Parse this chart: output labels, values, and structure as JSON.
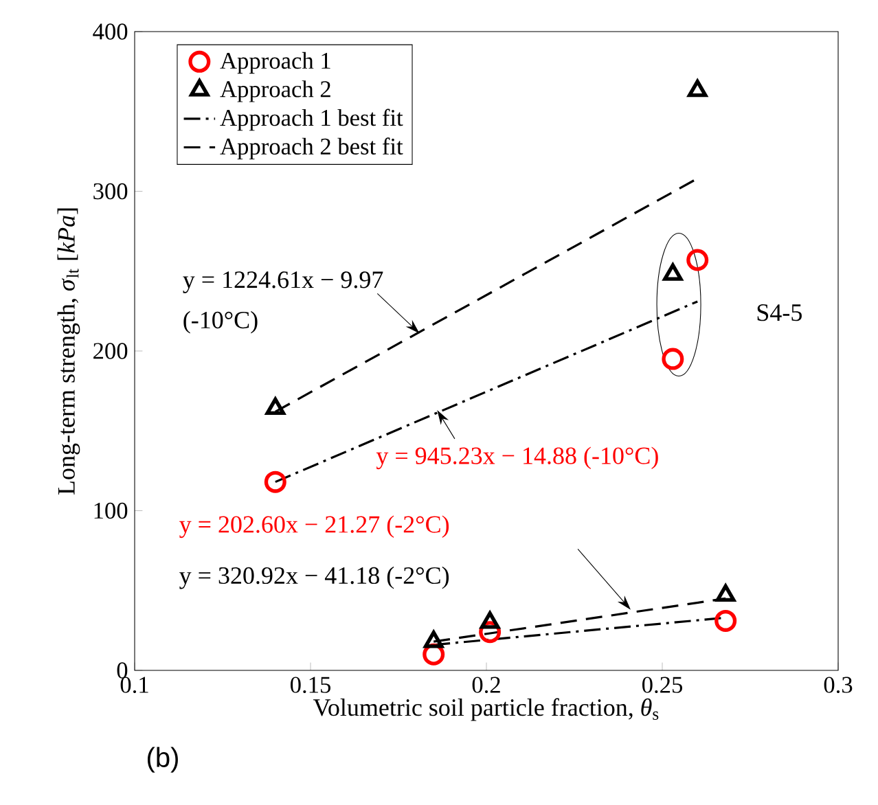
{
  "chart_data": {
    "type": "scatter",
    "xlabel": "Volumetric soil particle fraction, *θ*$_{s}$",
    "ylabel": "Long-term strength, *σ*$_{lt}$ [*kPa*]",
    "xlim": [
      0.1,
      0.3
    ],
    "ylim": [
      0,
      400
    ],
    "xticks": [
      0.1,
      0.15,
      0.2,
      0.25,
      0.3
    ],
    "yticks": [
      0,
      100,
      200,
      300,
      400
    ],
    "grid": false,
    "legend": "top left",
    "series": [
      {
        "name": "Approach 1",
        "type": "scatter",
        "marker": "circle",
        "color": "#ff0000",
        "x": [
          0.14,
          0.185,
          0.201,
          0.268,
          0.253,
          0.26
        ],
        "values": [
          118,
          10,
          24,
          31,
          195,
          257
        ]
      },
      {
        "name": "Approach 2",
        "type": "scatter",
        "marker": "triangle",
        "color": "#000000",
        "x": [
          0.14,
          0.185,
          0.201,
          0.268,
          0.253,
          0.26
        ],
        "values": [
          164,
          18,
          30,
          47,
          248,
          363
        ]
      },
      {
        "name": "Approach 1 best fit",
        "type": "line",
        "line_style": "dashdot",
        "color": "#000000",
        "x": [
          0.14,
          0.26,
          0.2,
          0.185,
          0.268
        ],
        "values": [
          118,
          231,
          null,
          16,
          33
        ]
      },
      {
        "name": "Approach 2 best fit",
        "type": "line",
        "line_style": "dashed",
        "color": "#000000",
        "x": [
          0.14,
          0.26,
          0.2,
          0.185,
          0.268
        ],
        "values": [
          162,
          308,
          null,
          18,
          45
        ]
      }
    ],
    "annotations": [
      {
        "text": "y = 1224.61x − 9.97",
        "x": 0.181,
        "y": 211
      },
      "(-10°C)",
      {
        "text": "y = 945.23x − 14.88 (-10°C)",
        "x": 0.186,
        "y": 163
      },
      "y = 202.60x − 21.27 (-2°C)",
      "y = 320.92x − 41.18 (-2°C)",
      "S4-5",
      "(b)"
    ]
  }
}
